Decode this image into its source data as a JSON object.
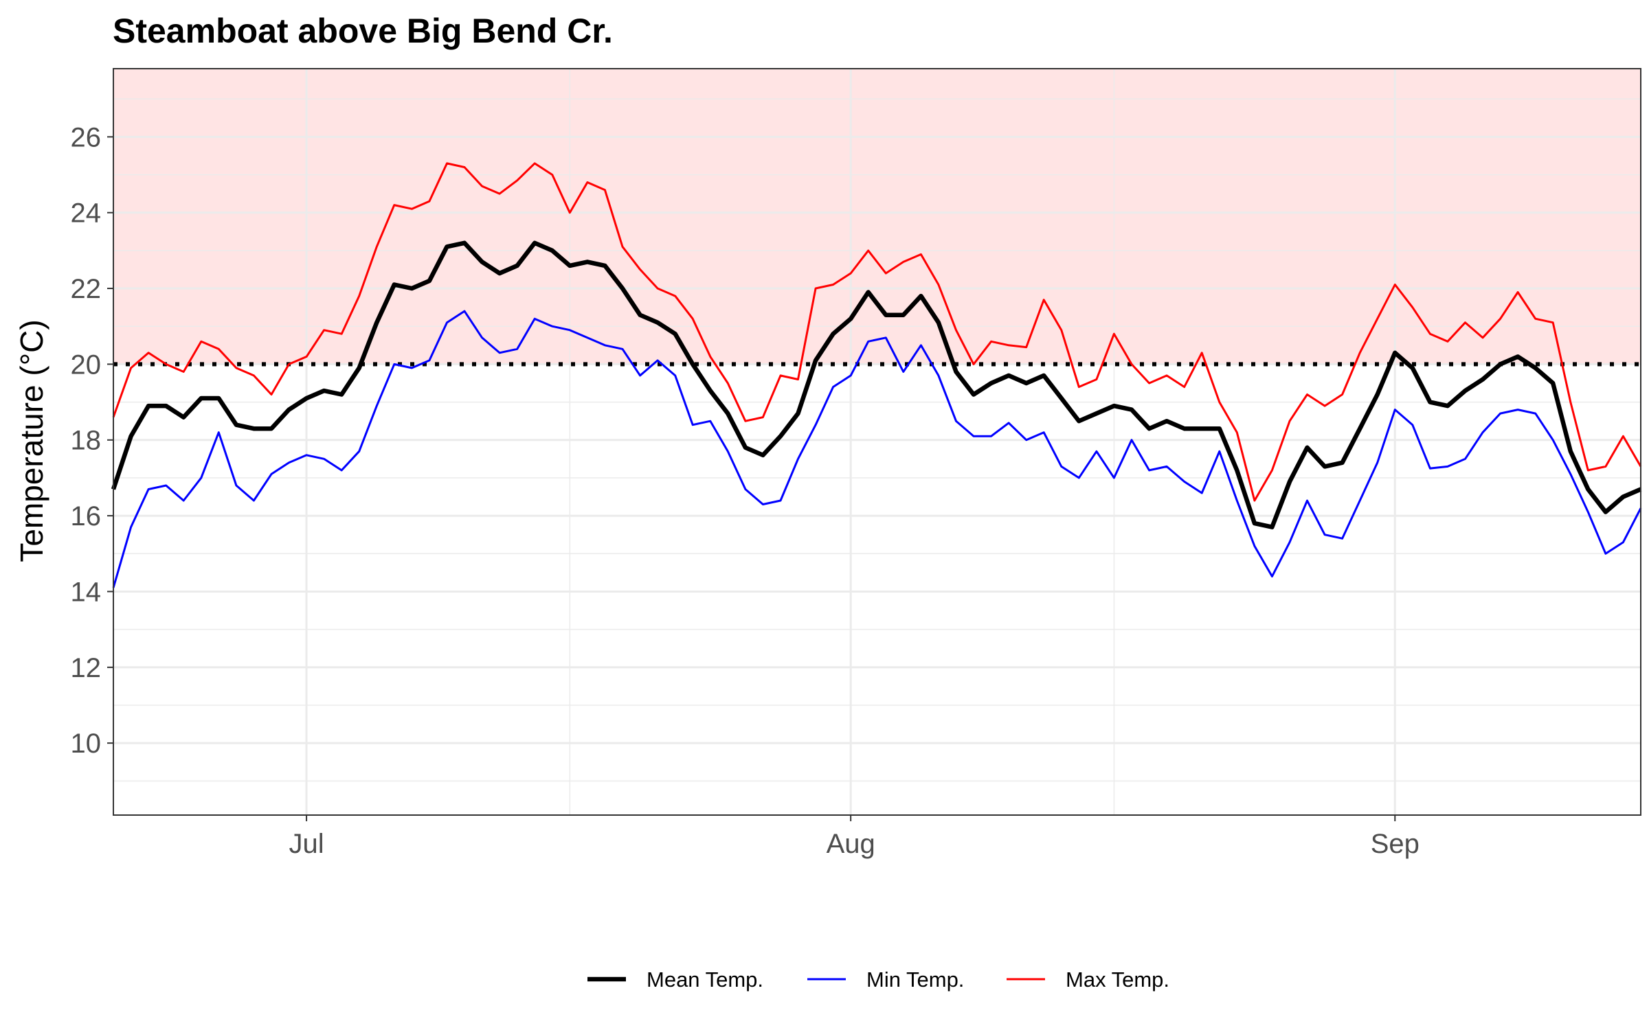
{
  "chart_data": {
    "type": "line",
    "title": "Steamboat above Big Bend Cr.",
    "xlabel": "",
    "ylabel": "Temperature (°C)",
    "ylim": [
      8.1,
      27.8
    ],
    "xlim": [
      "2015-06-20",
      "2015-09-15"
    ],
    "x_ticks": [
      {
        "date": "2015-07-01",
        "label": "Jul"
      },
      {
        "date": "2015-08-01",
        "label": "Aug"
      },
      {
        "date": "2015-09-01",
        "label": "Sep"
      }
    ],
    "x_minor_gridlines": [
      "2015-07-16",
      "2015-08-16"
    ],
    "y_ticks": [
      10,
      12,
      14,
      16,
      18,
      20,
      22,
      24,
      26
    ],
    "threshold": {
      "value": 20,
      "style": "dotted",
      "color": "#000000"
    },
    "shaded_region": {
      "from": 20,
      "to": 27.8,
      "color": "#ffe4e4"
    },
    "grid": true,
    "legend_position": "bottom",
    "x": [
      "2015-06-20",
      "2015-06-21",
      "2015-06-22",
      "2015-06-23",
      "2015-06-24",
      "2015-06-25",
      "2015-06-26",
      "2015-06-27",
      "2015-06-28",
      "2015-06-29",
      "2015-06-30",
      "2015-07-01",
      "2015-07-02",
      "2015-07-03",
      "2015-07-04",
      "2015-07-05",
      "2015-07-06",
      "2015-07-07",
      "2015-07-08",
      "2015-07-09",
      "2015-07-10",
      "2015-07-11",
      "2015-07-12",
      "2015-07-13",
      "2015-07-14",
      "2015-07-15",
      "2015-07-16",
      "2015-07-17",
      "2015-07-18",
      "2015-07-19",
      "2015-07-20",
      "2015-07-21",
      "2015-07-22",
      "2015-07-23",
      "2015-07-24",
      "2015-07-25",
      "2015-07-26",
      "2015-07-27",
      "2015-07-28",
      "2015-07-29",
      "2015-07-30",
      "2015-07-31",
      "2015-08-01",
      "2015-08-02",
      "2015-08-03",
      "2015-08-04",
      "2015-08-05",
      "2015-08-06",
      "2015-08-07",
      "2015-08-08",
      "2015-08-09",
      "2015-08-10",
      "2015-08-11",
      "2015-08-12",
      "2015-08-13",
      "2015-08-14",
      "2015-08-15",
      "2015-08-16",
      "2015-08-17",
      "2015-08-18",
      "2015-08-19",
      "2015-08-20",
      "2015-08-21",
      "2015-08-22",
      "2015-08-23",
      "2015-08-24",
      "2015-08-25",
      "2015-08-26",
      "2015-08-27",
      "2015-08-28",
      "2015-08-29",
      "2015-08-30",
      "2015-08-31",
      "2015-09-01",
      "2015-09-02",
      "2015-09-03",
      "2015-09-04",
      "2015-09-05",
      "2015-09-06",
      "2015-09-07",
      "2015-09-08",
      "2015-09-09",
      "2015-09-10",
      "2015-09-11",
      "2015-09-12",
      "2015-09-13",
      "2015-09-14",
      "2015-09-15"
    ],
    "series": [
      {
        "name": "Max Temp.",
        "color": "#ff0000",
        "values": [
          18.6,
          19.9,
          20.3,
          20.0,
          19.8,
          20.6,
          20.4,
          19.9,
          19.7,
          19.2,
          20.0,
          20.2,
          20.9,
          20.8,
          21.8,
          23.1,
          24.2,
          24.1,
          24.3,
          25.3,
          25.2,
          24.7,
          24.5,
          24.85,
          25.3,
          25.0,
          24.0,
          24.8,
          24.6,
          23.1,
          22.5,
          22.0,
          21.8,
          21.2,
          20.2,
          19.5,
          18.5,
          18.6,
          19.7,
          19.6,
          22.0,
          22.1,
          22.4,
          23.0,
          22.4,
          22.7,
          22.9,
          22.1,
          20.9,
          20.0,
          20.6,
          20.5,
          20.45,
          21.7,
          20.9,
          19.4,
          19.6,
          20.8,
          20.0,
          19.5,
          19.7,
          19.4,
          20.3,
          19.0,
          18.2,
          16.4,
          17.2,
          18.5,
          19.2,
          18.9,
          19.2,
          20.3,
          21.2,
          22.1,
          21.5,
          20.8,
          20.6,
          21.1,
          20.7,
          21.2,
          21.9,
          21.2,
          21.1,
          19.0,
          17.2,
          17.3,
          18.1,
          17.3
        ]
      },
      {
        "name": "Mean Temp.",
        "color": "#000000",
        "values": [
          16.7,
          18.1,
          18.9,
          18.9,
          18.6,
          19.1,
          19.1,
          18.4,
          18.3,
          18.3,
          18.8,
          19.1,
          19.3,
          19.2,
          19.9,
          21.1,
          22.1,
          22.0,
          22.2,
          23.1,
          23.2,
          22.7,
          22.4,
          22.6,
          23.2,
          23.0,
          22.6,
          22.7,
          22.6,
          22.0,
          21.3,
          21.1,
          20.8,
          20.0,
          19.3,
          18.7,
          17.8,
          17.6,
          18.1,
          18.7,
          20.1,
          20.8,
          21.2,
          21.9,
          21.3,
          21.3,
          21.8,
          21.1,
          19.8,
          19.2,
          19.5,
          19.7,
          19.5,
          19.7,
          19.1,
          18.5,
          18.7,
          18.9,
          18.8,
          18.3,
          18.5,
          18.3,
          18.3,
          18.3,
          17.2,
          15.8,
          15.7,
          16.9,
          17.8,
          17.3,
          17.4,
          18.3,
          19.2,
          20.3,
          19.9,
          19.0,
          18.9,
          19.3,
          19.6,
          20.0,
          20.2,
          19.9,
          19.5,
          17.7,
          16.7,
          16.1,
          16.5,
          16.7
        ]
      },
      {
        "name": "Min Temp.",
        "color": "#0000ff",
        "values": [
          14.1,
          15.7,
          16.7,
          16.8,
          16.4,
          17.0,
          18.2,
          16.8,
          16.4,
          17.1,
          17.4,
          17.6,
          17.5,
          17.2,
          17.7,
          18.9,
          20.0,
          19.9,
          20.1,
          21.1,
          21.4,
          20.7,
          20.3,
          20.4,
          21.2,
          21.0,
          20.9,
          20.7,
          20.5,
          20.4,
          19.7,
          20.1,
          19.7,
          18.4,
          18.5,
          17.7,
          16.7,
          16.3,
          16.4,
          17.5,
          18.4,
          19.4,
          19.7,
          20.6,
          20.7,
          19.8,
          20.5,
          19.7,
          18.5,
          18.1,
          18.1,
          18.45,
          18.0,
          18.2,
          17.3,
          17.0,
          17.7,
          17.0,
          18.0,
          17.2,
          17.3,
          16.9,
          16.6,
          17.7,
          16.4,
          15.2,
          14.4,
          15.3,
          16.4,
          15.5,
          15.4,
          16.4,
          17.4,
          18.8,
          18.4,
          17.25,
          17.3,
          17.5,
          18.2,
          18.7,
          18.8,
          18.7,
          18.0,
          17.1,
          16.1,
          15.0,
          15.3,
          16.2
        ]
      }
    ],
    "legend_order": [
      "Mean Temp.",
      "Min Temp.",
      "Max Temp."
    ]
  }
}
